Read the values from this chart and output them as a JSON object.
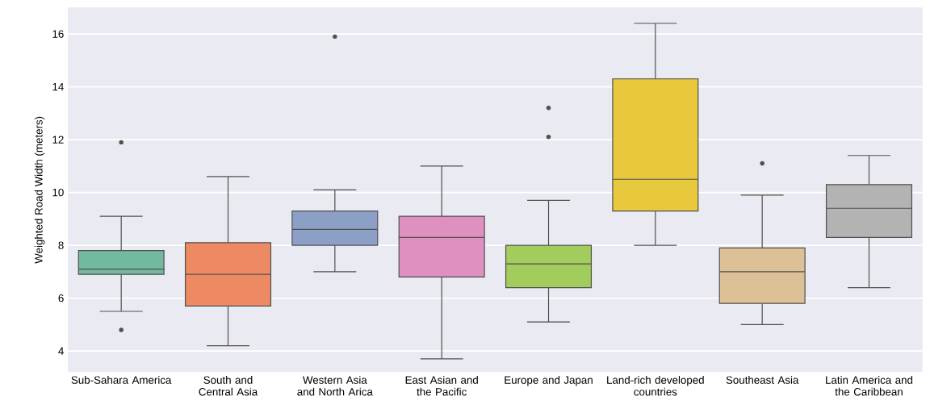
{
  "chart_data": {
    "type": "box",
    "ylabel": "Weighted Road Width (meters)",
    "categories": [
      "Sub-Sahara America",
      "South and Central Asia",
      "Western Asia and North Arica",
      "East Asian and the Pacific",
      "Europe and Japan",
      "Land-rich developed countries",
      "Southeast Asia",
      "Latin America and the Caribbean"
    ],
    "boxes": [
      {
        "low": 5.5,
        "q1": 6.9,
        "median": 7.1,
        "q3": 7.8,
        "high": 9.1,
        "outliers": [
          11.9,
          4.8
        ]
      },
      {
        "low": 4.2,
        "q1": 5.7,
        "median": 6.9,
        "q3": 8.1,
        "high": 10.6
      },
      {
        "low": 7.0,
        "q1": 8.0,
        "median": 8.6,
        "q3": 9.3,
        "high": 10.1,
        "outliers": [
          15.9
        ]
      },
      {
        "low": 3.7,
        "q1": 6.8,
        "median": 8.3,
        "q3": 9.1,
        "high": 11.0
      },
      {
        "low": 5.1,
        "q1": 6.4,
        "median": 7.3,
        "q3": 8.0,
        "high": 9.7,
        "outliers": [
          13.2,
          12.1
        ]
      },
      {
        "low": 8.0,
        "q1": 9.3,
        "median": 10.5,
        "q3": 14.3,
        "high": 16.4
      },
      {
        "low": 5.0,
        "q1": 5.8,
        "median": 7.0,
        "q3": 7.9,
        "high": 9.9,
        "outliers": [
          11.1
        ]
      },
      {
        "low": 6.4,
        "q1": 8.3,
        "median": 9.4,
        "q3": 10.3,
        "high": 11.4
      }
    ],
    "colors": [
      "#72b9a0",
      "#ee8a63",
      "#8c9fc6",
      "#df8fc0",
      "#a2cc5c",
      "#e8c93d",
      "#dcc196",
      "#b3b3b3"
    ],
    "ylim": [
      3.2,
      17
    ],
    "yticks": [
      4,
      6,
      8,
      10,
      12,
      14,
      16
    ],
    "grid": "y"
  }
}
